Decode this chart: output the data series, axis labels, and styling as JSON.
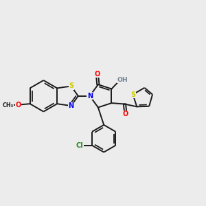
{
  "bg_color": "#ececec",
  "bond_color": "#1a1a1a",
  "bond_width": 1.4,
  "atom_colors": {
    "O": "#ff0000",
    "N": "#0000ee",
    "S_benz": "#cccc00",
    "S_thio": "#cccc00",
    "Cl": "#228b22",
    "H": "#708090",
    "C": "#1a1a1a"
  },
  "font_size": 7.0,
  "fig_size": [
    3.0,
    3.0
  ],
  "dpi": 100,
  "xlim": [
    0,
    10
  ],
  "ylim": [
    0,
    10
  ]
}
